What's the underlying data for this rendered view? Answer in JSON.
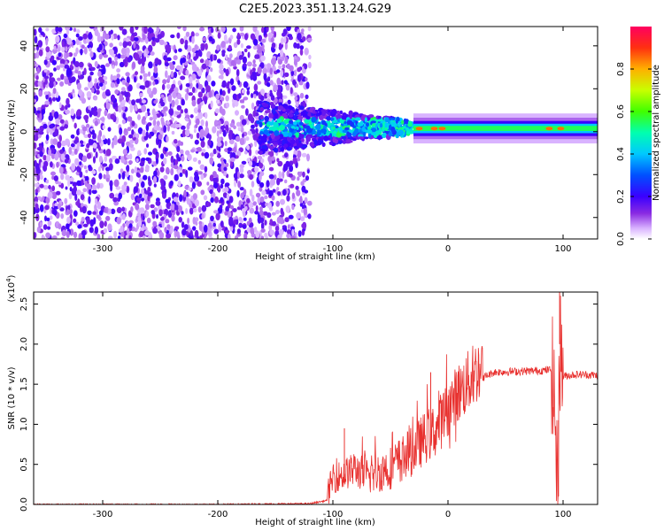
{
  "title": "C2E5.2023.351.13.24.G29",
  "chart_data": [
    {
      "type": "heatmap",
      "xlabel": "Height of straight line (km)",
      "ylabel": "Frequency (Hz)",
      "xlim": [
        -360,
        130
      ],
      "ylim": [
        -50,
        49
      ],
      "xticks": [
        -300,
        -200,
        -100,
        0,
        100
      ],
      "yticks": [
        -40,
        -20,
        0,
        20,
        40
      ],
      "colorbar": {
        "label": "Normalized spectral amplitude",
        "ticks": [
          "0.0",
          "0.2",
          "0.4",
          "0.6",
          "0.8"
        ],
        "range": [
          0,
          1
        ]
      },
      "description_regions": [
        {
          "x_range": [
            -360,
            -120
          ],
          "freq_range": [
            -50,
            49
          ],
          "amplitude": "low noise"
        },
        {
          "x_range": [
            -160,
            -30
          ],
          "freq_range": [
            -10,
            15
          ],
          "amplitude": "medium"
        },
        {
          "x_range": [
            -30,
            130
          ],
          "freq_range": [
            -2,
            4
          ],
          "amplitude": "high at ~0 Hz"
        }
      ]
    },
    {
      "type": "line",
      "xlabel": "Height of straight line (km)",
      "ylabel": "SNR (10 * v/v)",
      "yscale_label": "(x10",
      "yscale_exp": "4",
      "yscale_close": ")",
      "xlim": [
        -360,
        130
      ],
      "ylim": [
        0,
        2.65
      ],
      "xticks": [
        -300,
        -200,
        -100,
        0,
        100
      ],
      "yticks": [
        "0.0",
        "0.5",
        "1.0",
        "1.5",
        "2.0",
        "2.5"
      ],
      "series": [
        {
          "name": "SNR",
          "color": "#e8302e",
          "x": [
            -360,
            -300,
            -200,
            -120,
            -105,
            -100,
            -90,
            -80,
            -70,
            -60,
            -50,
            -40,
            -30,
            -20,
            -10,
            0,
            10,
            20,
            30,
            40,
            60,
            80,
            90,
            93,
            95,
            97,
            100,
            110,
            120,
            130
          ],
          "y": [
            0.0,
            0.0,
            0.0,
            0.01,
            0.05,
            0.25,
            0.3,
            0.35,
            0.25,
            0.3,
            0.35,
            0.45,
            0.55,
            0.7,
            0.8,
            1.05,
            1.25,
            1.4,
            1.58,
            1.65,
            1.66,
            1.67,
            1.68,
            1.2,
            0.1,
            2.0,
            1.6,
            1.62,
            1.62,
            1.61
          ]
        }
      ],
      "spike_notes": [
        {
          "x": -90,
          "y": 0.95
        },
        {
          "x": -15,
          "y": 1.65
        },
        {
          "x": 97,
          "y": 2.65
        },
        {
          "x": 96,
          "y": 0.1
        }
      ]
    }
  ]
}
